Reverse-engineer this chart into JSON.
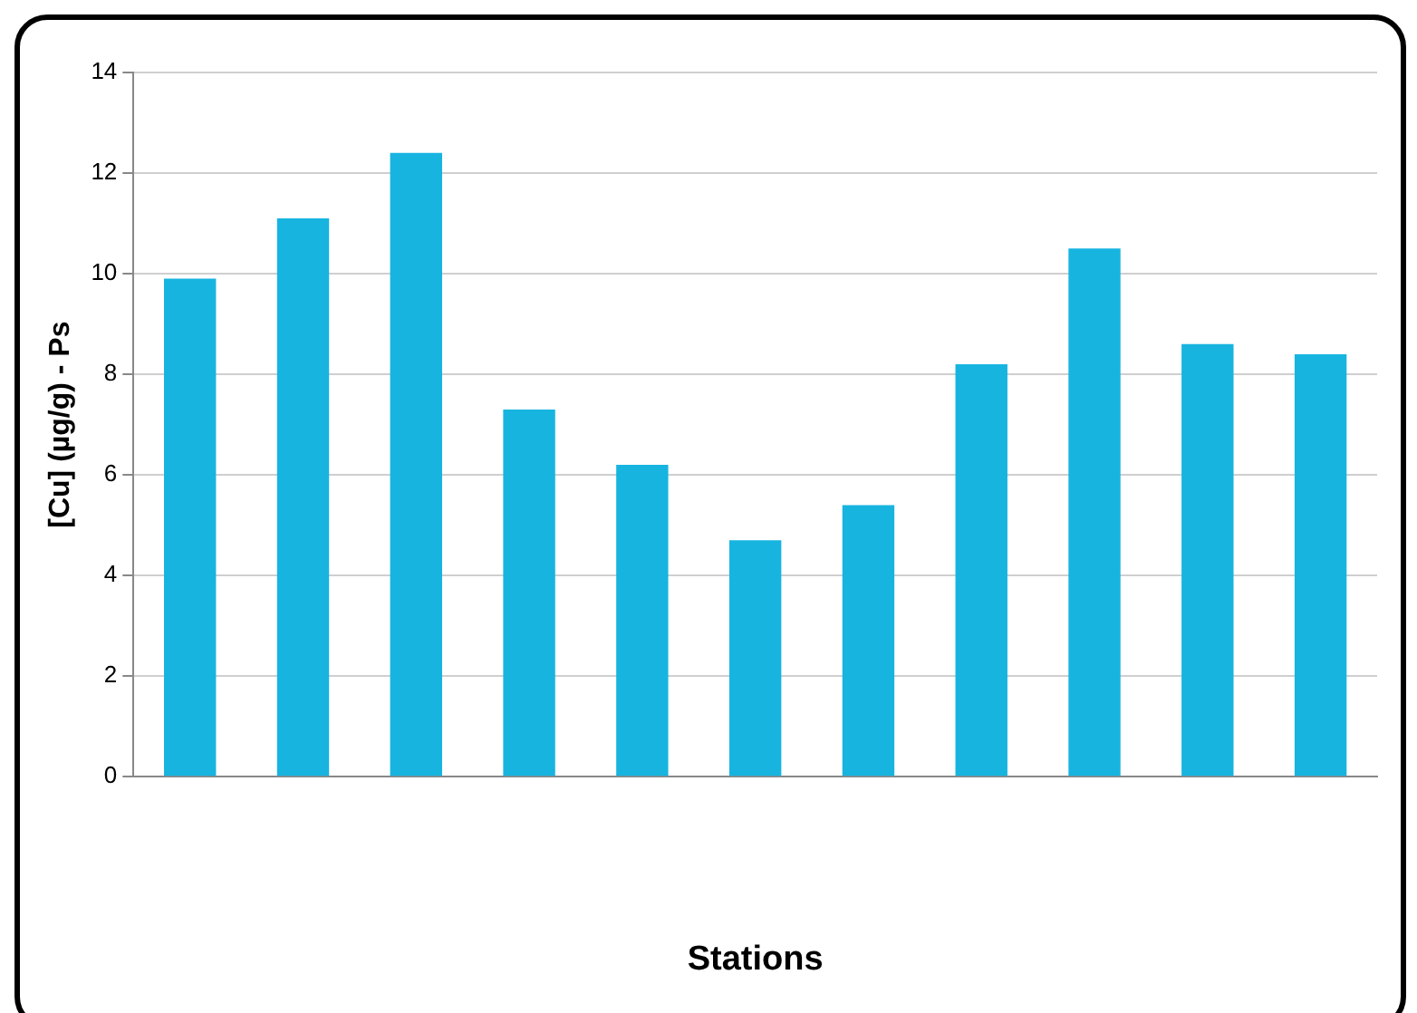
{
  "chart_data": {
    "type": "bar",
    "xlabel": "Stations",
    "ylabel": "[Cu] (µg/g) - Ps",
    "categories": [
      null,
      null,
      null,
      null,
      null,
      null,
      null,
      null,
      null,
      null,
      null
    ],
    "values": [
      9.9,
      11.1,
      12.4,
      7.3,
      6.2,
      4.7,
      5.4,
      8.2,
      10.5,
      8.6,
      8.4
    ],
    "color": "#17b4e0",
    "ylim": [
      0,
      14
    ],
    "yticks": [
      0,
      2,
      4,
      6,
      8,
      10,
      12,
      14
    ],
    "grid": "y",
    "legend": false
  }
}
